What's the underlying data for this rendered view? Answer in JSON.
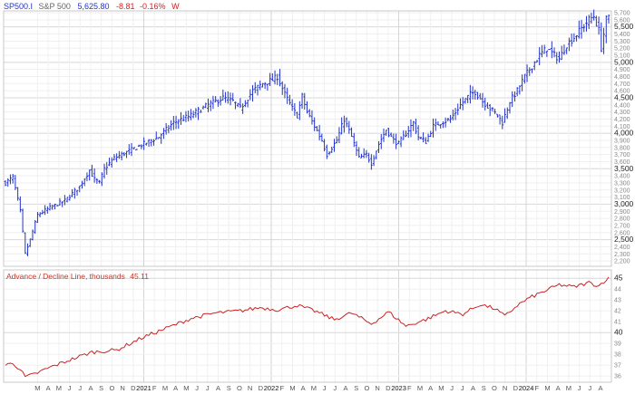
{
  "header": {
    "symbol": "SP500.I",
    "name": "S&P 500",
    "last": "5,625.80",
    "change": "-8.81",
    "change_pct": "-0.16%",
    "period": "W"
  },
  "colors": {
    "price_bars": "#2233cc",
    "ad_line": "#cc2222",
    "negative": "#cc2222",
    "header_blue": "#2233cc",
    "grid": "#e6e6e6"
  },
  "chart_data": [
    {
      "type": "ohlc",
      "series_name": "S&P 500",
      "frequency": "weekly",
      "x_axis": {
        "month_labels": [
          "M",
          "A",
          "M",
          "J",
          "J",
          "A",
          "S",
          "O",
          "N",
          "D",
          "2021",
          "F",
          "M",
          "A",
          "M",
          "J",
          "J",
          "A",
          "S",
          "O",
          "N",
          "D",
          "2022",
          "F",
          "M",
          "A",
          "M",
          "J",
          "J",
          "A",
          "S",
          "O",
          "N",
          "D",
          "2023",
          "F",
          "M",
          "A",
          "M",
          "J",
          "J",
          "A",
          "S",
          "O",
          "N",
          "D",
          "2024",
          "F",
          "M",
          "A",
          "M",
          "J",
          "J",
          "A"
        ],
        "year_labels": [
          "2021",
          "2022",
          "2023",
          "2024"
        ]
      },
      "y_axis": {
        "ylim": [
          2150,
          5700
        ],
        "ticks": [
          "5,700",
          "5,600",
          "5,500",
          "5,400",
          "5,300",
          "5,200",
          "5,100",
          "5,000",
          "4,900",
          "4,800",
          "4,700",
          "4,600",
          "4,500",
          "4,400",
          "4,300",
          "4,200",
          "4,100",
          "4,000",
          "3,900",
          "3,800",
          "3,700",
          "3,600",
          "3,500",
          "3,400",
          "3,300",
          "3,200",
          "3,100",
          "3,000",
          "2,900",
          "2,800",
          "2,700",
          "2,600",
          "2,500",
          "2,400",
          "2,300",
          "2,200"
        ],
        "major_ticks": [
          "5,500",
          "5,000",
          "4,500",
          "4,000",
          "3,500",
          "3,000",
          "2,500"
        ],
        "grid": true
      },
      "anchor_closes": [
        {
          "t": 0,
          "close": 3300
        },
        {
          "t": 3,
          "close": 3380
        },
        {
          "t": 6,
          "close": 2900
        },
        {
          "t": 8,
          "close": 2300
        },
        {
          "t": 10,
          "close": 2500
        },
        {
          "t": 13,
          "close": 2850
        },
        {
          "t": 18,
          "close": 2950
        },
        {
          "t": 24,
          "close": 3050
        },
        {
          "t": 30,
          "close": 3250
        },
        {
          "t": 34,
          "close": 3480
        },
        {
          "t": 36,
          "close": 3350
        },
        {
          "t": 38,
          "close": 3300
        },
        {
          "t": 40,
          "close": 3500
        },
        {
          "t": 44,
          "close": 3650
        },
        {
          "t": 50,
          "close": 3750
        },
        {
          "t": 56,
          "close": 3850
        },
        {
          "t": 62,
          "close": 3950
        },
        {
          "t": 68,
          "close": 4150
        },
        {
          "t": 75,
          "close": 4250
        },
        {
          "t": 82,
          "close": 4400
        },
        {
          "t": 88,
          "close": 4500
        },
        {
          "t": 92,
          "close": 4450
        },
        {
          "t": 95,
          "close": 4350
        },
        {
          "t": 100,
          "close": 4600
        },
        {
          "t": 104,
          "close": 4700
        },
        {
          "t": 108,
          "close": 4750
        },
        {
          "t": 110,
          "close": 4800
        },
        {
          "t": 113,
          "close": 4550
        },
        {
          "t": 116,
          "close": 4350
        },
        {
          "t": 118,
          "close": 4250
        },
        {
          "t": 120,
          "close": 4520
        },
        {
          "t": 122,
          "close": 4300
        },
        {
          "t": 125,
          "close": 4100
        },
        {
          "t": 128,
          "close": 3900
        },
        {
          "t": 130,
          "close": 3700
        },
        {
          "t": 134,
          "close": 3900
        },
        {
          "t": 137,
          "close": 4200
        },
        {
          "t": 140,
          "close": 3950
        },
        {
          "t": 143,
          "close": 3650
        },
        {
          "t": 146,
          "close": 3700
        },
        {
          "t": 148,
          "close": 3580
        },
        {
          "t": 151,
          "close": 3850
        },
        {
          "t": 154,
          "close": 4050
        },
        {
          "t": 157,
          "close": 3900
        },
        {
          "t": 159,
          "close": 3850
        },
        {
          "t": 162,
          "close": 4000
        },
        {
          "t": 165,
          "close": 4150
        },
        {
          "t": 167,
          "close": 3950
        },
        {
          "t": 170,
          "close": 3880
        },
        {
          "t": 173,
          "close": 4100
        },
        {
          "t": 176,
          "close": 4150
        },
        {
          "t": 180,
          "close": 4200
        },
        {
          "t": 184,
          "close": 4400
        },
        {
          "t": 188,
          "close": 4550
        },
        {
          "t": 190,
          "close": 4580
        },
        {
          "t": 193,
          "close": 4450
        },
        {
          "t": 196,
          "close": 4350
        },
        {
          "t": 199,
          "close": 4250
        },
        {
          "t": 201,
          "close": 4150
        },
        {
          "t": 204,
          "close": 4450
        },
        {
          "t": 207,
          "close": 4600
        },
        {
          "t": 210,
          "close": 4800
        },
        {
          "t": 213,
          "close": 4950
        },
        {
          "t": 216,
          "close": 5100
        },
        {
          "t": 219,
          "close": 5200
        },
        {
          "t": 222,
          "close": 5100
        },
        {
          "t": 224,
          "close": 5050
        },
        {
          "t": 227,
          "close": 5250
        },
        {
          "t": 230,
          "close": 5350
        },
        {
          "t": 233,
          "close": 5480
        },
        {
          "t": 236,
          "close": 5600
        },
        {
          "t": 238,
          "close": 5650
        },
        {
          "t": 240,
          "close": 5450
        },
        {
          "t": 241,
          "close": 5200
        },
        {
          "t": 242,
          "close": 5400
        },
        {
          "t": 243,
          "close": 5600
        },
        {
          "t": 244,
          "close": 5625.8
        }
      ]
    },
    {
      "type": "line",
      "series_name": "Advance / Decline Line",
      "label": "Advance / Decline Line, thousands",
      "last_value": "45.11",
      "y_axis": {
        "ylim": [
          35.6,
          45.6
        ],
        "ticks": [
          "45",
          "44",
          "43",
          "42",
          "41",
          "40",
          "39",
          "38",
          "37",
          "36"
        ],
        "major_ticks": [
          "45",
          "40"
        ]
      },
      "anchor_values": [
        {
          "t": 0,
          "v": 37.0
        },
        {
          "t": 3,
          "v": 37.2
        },
        {
          "t": 6,
          "v": 36.6
        },
        {
          "t": 8,
          "v": 35.9
        },
        {
          "t": 12,
          "v": 36.2
        },
        {
          "t": 18,
          "v": 36.8
        },
        {
          "t": 25,
          "v": 37.4
        },
        {
          "t": 35,
          "v": 38.2
        },
        {
          "t": 45,
          "v": 38.4
        },
        {
          "t": 55,
          "v": 39.5
        },
        {
          "t": 65,
          "v": 40.4
        },
        {
          "t": 75,
          "v": 41.3
        },
        {
          "t": 85,
          "v": 41.8
        },
        {
          "t": 95,
          "v": 42.0
        },
        {
          "t": 103,
          "v": 42.3
        },
        {
          "t": 110,
          "v": 42.1
        },
        {
          "t": 118,
          "v": 42.5
        },
        {
          "t": 125,
          "v": 42.0
        },
        {
          "t": 133,
          "v": 41.2
        },
        {
          "t": 140,
          "v": 41.8
        },
        {
          "t": 148,
          "v": 40.8
        },
        {
          "t": 155,
          "v": 41.9
        },
        {
          "t": 162,
          "v": 40.6
        },
        {
          "t": 170,
          "v": 41.2
        },
        {
          "t": 178,
          "v": 42.0
        },
        {
          "t": 185,
          "v": 41.7
        },
        {
          "t": 192,
          "v": 42.6
        },
        {
          "t": 198,
          "v": 42.2
        },
        {
          "t": 202,
          "v": 41.5
        },
        {
          "t": 207,
          "v": 42.5
        },
        {
          "t": 212,
          "v": 43.2
        },
        {
          "t": 218,
          "v": 43.8
        },
        {
          "t": 224,
          "v": 44.4
        },
        {
          "t": 230,
          "v": 44.2
        },
        {
          "t": 236,
          "v": 44.6
        },
        {
          "t": 240,
          "v": 44.3
        },
        {
          "t": 244,
          "v": 45.11
        }
      ]
    }
  ]
}
